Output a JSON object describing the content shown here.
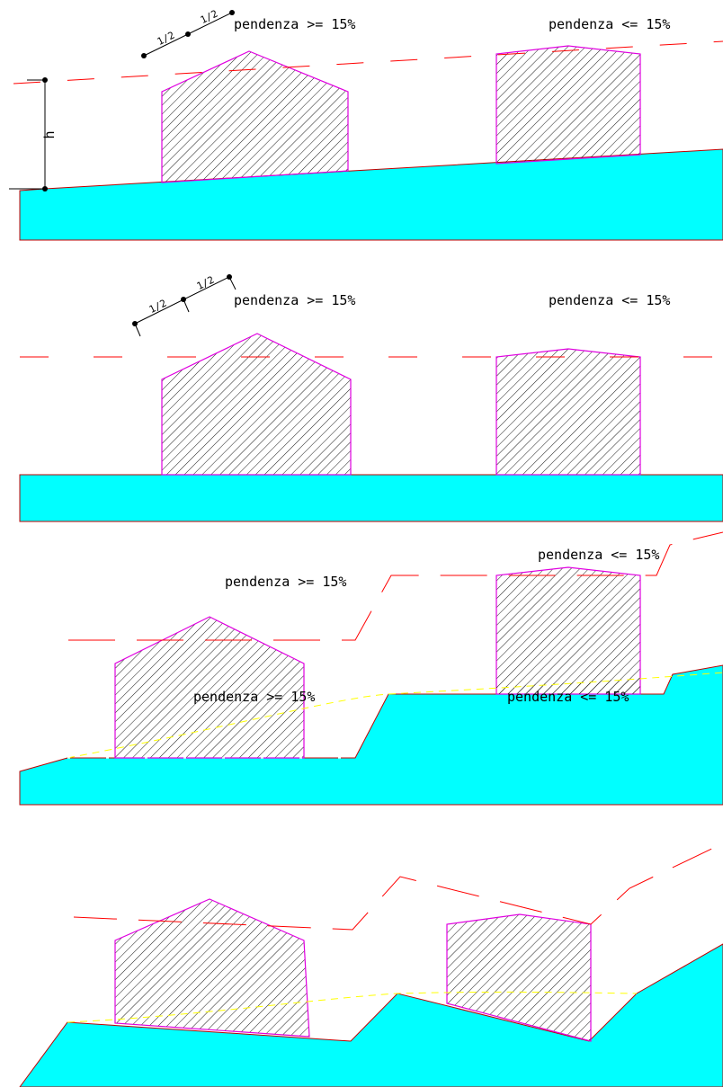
{
  "colors": {
    "terrain": "#00ffff",
    "terrain_edge": "#c00000",
    "building_outline": "#e000e0",
    "hatch": "#000000",
    "limit_line": "#ff0000",
    "ground_line": "#ffff00",
    "background": "#ffffff"
  },
  "labels": {
    "gte": "pendenza >= 15%",
    "lte": "pendenza <= 15%",
    "half": "1/2",
    "height": "h"
  }
}
